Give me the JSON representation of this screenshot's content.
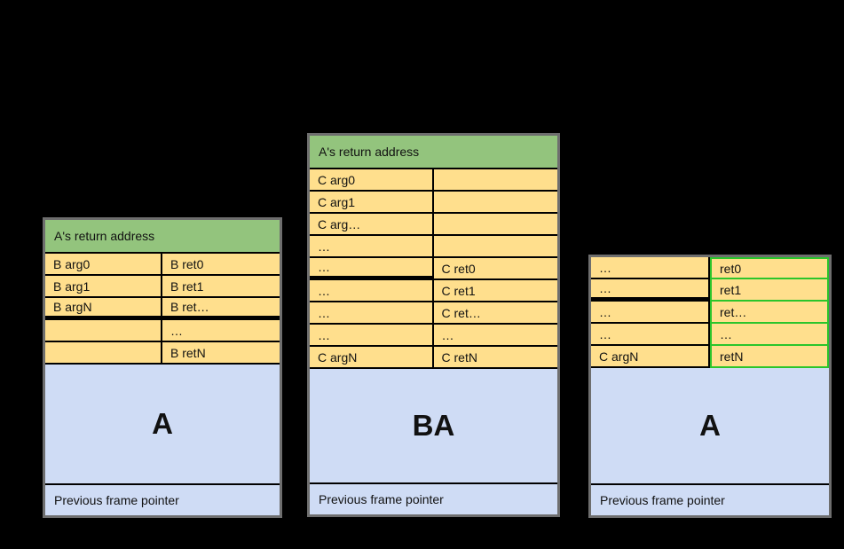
{
  "colors": {
    "header_green": "#93c47d",
    "cell_yellow": "#ffdf8d",
    "body_blue": "#cfdcf5",
    "highlight_green": "#2bc52b",
    "table_border_gray": "#6e6e6e",
    "line_black": "#000000",
    "background": "#000000"
  },
  "stacks": [
    {
      "header": "A's return address",
      "rows": [
        {
          "left": "B arg0",
          "right": "B ret0"
        },
        {
          "left": "B arg1",
          "right": "B ret1"
        },
        {
          "left": "B argN",
          "right": "B ret…"
        },
        {
          "left": "",
          "right": "…"
        },
        {
          "left": "",
          "right": "B retN"
        }
      ],
      "body_label": "A",
      "footer": "Previous frame pointer"
    },
    {
      "header": "A's return address",
      "rows": [
        {
          "left": "C arg0",
          "right": ""
        },
        {
          "left": "C arg1",
          "right": ""
        },
        {
          "left": "C arg…",
          "right": ""
        },
        {
          "left": "…",
          "right": ""
        },
        {
          "left": "…",
          "right": "C ret0"
        },
        {
          "left": "…",
          "right": "C ret1"
        },
        {
          "left": "…",
          "right": "C ret…"
        },
        {
          "left": "…",
          "right": "…"
        },
        {
          "left": "C argN",
          "right": "C retN"
        }
      ],
      "body_label": "BA",
      "footer": "Previous frame pointer"
    },
    {
      "rows": [
        {
          "left": "…",
          "right": "ret0"
        },
        {
          "left": "…",
          "right": "ret1"
        },
        {
          "left": "…",
          "right": "ret…"
        },
        {
          "left": "…",
          "right": "…"
        },
        {
          "left": "C argN",
          "right": "retN"
        }
      ],
      "body_label": "A",
      "footer": "Previous frame pointer"
    }
  ]
}
